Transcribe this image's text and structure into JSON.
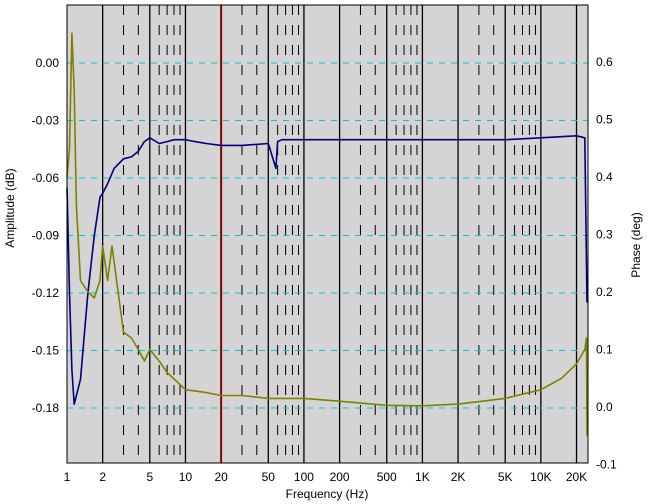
{
  "chart_data": {
    "type": "line",
    "title": "",
    "xlabel": "Frequency (Hz)",
    "ylabel_left": "Amplitude (dB)",
    "ylabel_right": "Phase (deg)",
    "x_scale": "log",
    "xlim": [
      1,
      25000
    ],
    "ylim_left": [
      -0.2,
      0.02
    ],
    "ylim_right": [
      -0.1,
      0.66
    ],
    "grid": true,
    "legend": "none",
    "x_tick_labels": [
      {
        "value": 1,
        "label": "1"
      },
      {
        "value": 2,
        "label": "2"
      },
      {
        "value": 5,
        "label": "5"
      },
      {
        "value": 10,
        "label": "10"
      },
      {
        "value": 20,
        "label": "20"
      },
      {
        "value": 50,
        "label": "50"
      },
      {
        "value": 100,
        "label": "100"
      },
      {
        "value": 200,
        "label": "200"
      },
      {
        "value": 500,
        "label": "500"
      },
      {
        "value": 1000,
        "label": "1K"
      },
      {
        "value": 2000,
        "label": "2K"
      },
      {
        "value": 5000,
        "label": "5K"
      },
      {
        "value": 10000,
        "label": "10K"
      },
      {
        "value": 20000,
        "label": "20K"
      }
    ],
    "y_left_ticks": [
      {
        "value": 0.0,
        "label": "0.00"
      },
      {
        "value": -0.03,
        "label": "-0.03"
      },
      {
        "value": -0.06,
        "label": "-0.06"
      },
      {
        "value": -0.09,
        "label": "-0.09"
      },
      {
        "value": -0.12,
        "label": "-0.12"
      },
      {
        "value": -0.15,
        "label": "-0.15"
      },
      {
        "value": -0.18,
        "label": "-0.18"
      }
    ],
    "y_right_ticks": [
      {
        "value": 0.6,
        "label": "0.6"
      },
      {
        "value": 0.5,
        "label": "0.5"
      },
      {
        "value": 0.4,
        "label": "0.4"
      },
      {
        "value": 0.3,
        "label": "0.3"
      },
      {
        "value": 0.2,
        "label": "0.2"
      },
      {
        "value": 0.1,
        "label": "0.1"
      },
      {
        "value": 0.0,
        "label": "0.0"
      },
      {
        "value": -0.1,
        "label": "-0.1"
      }
    ],
    "marker_line": {
      "x": 20,
      "color": "#8b0000"
    },
    "series": [
      {
        "axis": "left",
        "color": "#000080",
        "points": [
          [
            1.0,
            -0.065
          ],
          [
            1.05,
            -0.12
          ],
          [
            1.1,
            -0.16
          ],
          [
            1.15,
            -0.178
          ],
          [
            1.3,
            -0.165
          ],
          [
            1.5,
            -0.12
          ],
          [
            1.7,
            -0.09
          ],
          [
            1.9,
            -0.07
          ],
          [
            2.0,
            -0.068
          ],
          [
            2.2,
            -0.063
          ],
          [
            2.5,
            -0.055
          ],
          [
            3.0,
            -0.05
          ],
          [
            3.5,
            -0.049
          ],
          [
            4.0,
            -0.046
          ],
          [
            4.5,
            -0.041
          ],
          [
            5.0,
            -0.039
          ],
          [
            6.0,
            -0.042
          ],
          [
            7.0,
            -0.041
          ],
          [
            8.0,
            -0.04
          ],
          [
            10.0,
            -0.04
          ],
          [
            12.0,
            -0.041
          ],
          [
            15.0,
            -0.042
          ],
          [
            20.0,
            -0.043
          ],
          [
            30.0,
            -0.043
          ],
          [
            50.0,
            -0.042
          ],
          [
            58.0,
            -0.055
          ],
          [
            60.0,
            -0.041
          ],
          [
            65.0,
            -0.04
          ],
          [
            100.0,
            -0.04
          ],
          [
            200.0,
            -0.04
          ],
          [
            500.0,
            -0.04
          ],
          [
            1000.0,
            -0.04
          ],
          [
            2000.0,
            -0.04
          ],
          [
            5000.0,
            -0.04
          ],
          [
            10000.0,
            -0.039
          ],
          [
            20000.0,
            -0.038
          ],
          [
            23500.0,
            -0.039
          ],
          [
            24500.0,
            -0.125
          ]
        ]
      },
      {
        "axis": "right",
        "color": "#808000",
        "points": [
          [
            1.0,
            0.4
          ],
          [
            1.05,
            0.45
          ],
          [
            1.1,
            0.65
          ],
          [
            1.15,
            0.55
          ],
          [
            1.2,
            0.35
          ],
          [
            1.3,
            0.22
          ],
          [
            1.5,
            0.2
          ],
          [
            1.7,
            0.19
          ],
          [
            1.9,
            0.22
          ],
          [
            2.0,
            0.28
          ],
          [
            2.2,
            0.22
          ],
          [
            2.4,
            0.28
          ],
          [
            2.7,
            0.2
          ],
          [
            3.0,
            0.13
          ],
          [
            3.5,
            0.12
          ],
          [
            4.0,
            0.1
          ],
          [
            4.5,
            0.08
          ],
          [
            5.0,
            0.1
          ],
          [
            6.0,
            0.08
          ],
          [
            7.0,
            0.06
          ],
          [
            10.0,
            0.03
          ],
          [
            15.0,
            0.025
          ],
          [
            20.0,
            0.02
          ],
          [
            30.0,
            0.02
          ],
          [
            50.0,
            0.015
          ],
          [
            100.0,
            0.015
          ],
          [
            200.0,
            0.01
          ],
          [
            500.0,
            0.003
          ],
          [
            1000.0,
            0.002
          ],
          [
            2000.0,
            0.005
          ],
          [
            5000.0,
            0.015
          ],
          [
            10000.0,
            0.03
          ],
          [
            15000.0,
            0.05
          ],
          [
            20000.0,
            0.075
          ],
          [
            23500.0,
            0.1
          ],
          [
            24300.0,
            0.12
          ],
          [
            24500.0,
            -0.05
          ]
        ]
      }
    ]
  }
}
